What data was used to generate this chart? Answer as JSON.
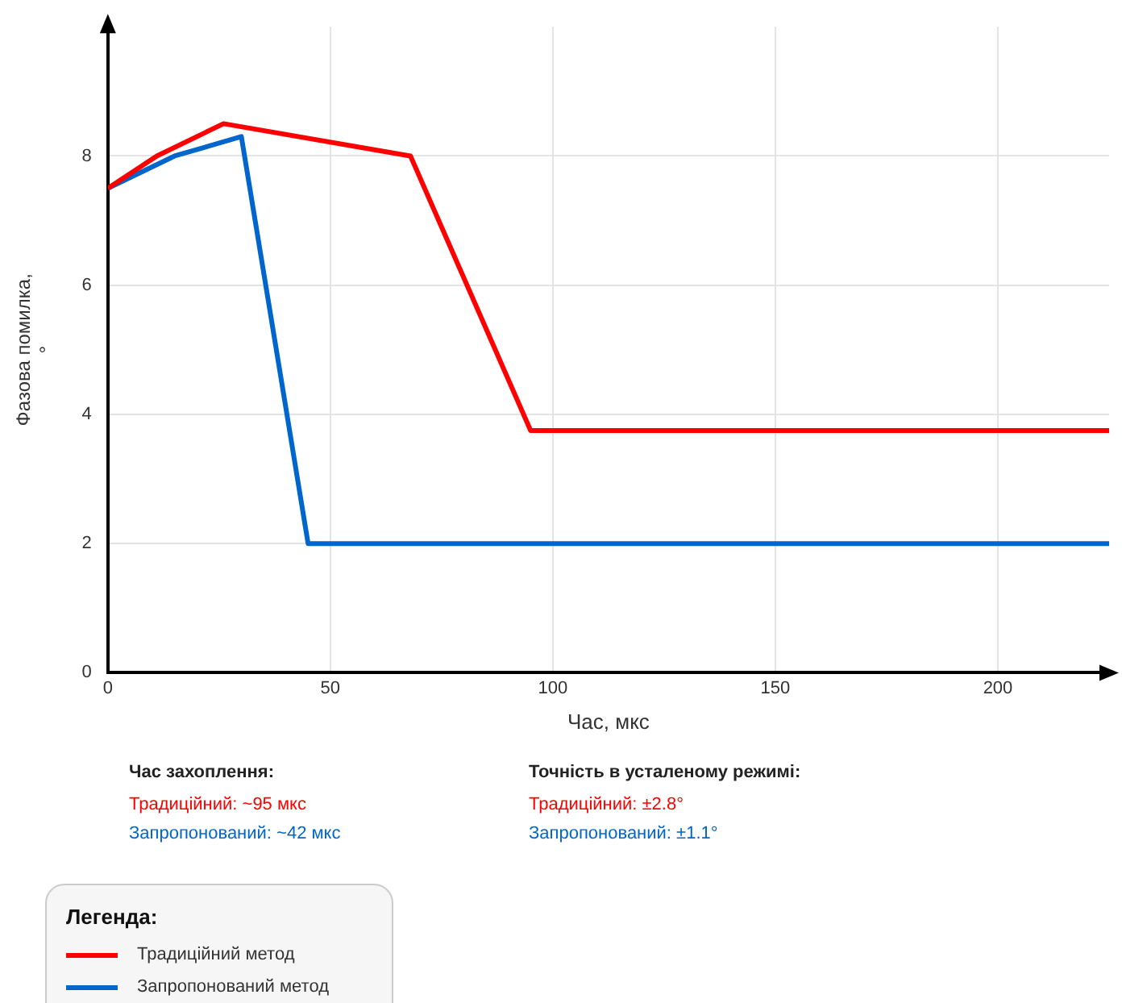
{
  "chart_data": {
    "type": "line",
    "xlabel": "Час, мкс",
    "ylabel": "Фазова помилка, °",
    "legend_title": "Легенда:",
    "xlim": [
      0,
      225
    ],
    "xticks": [
      0,
      50,
      100,
      150,
      200
    ],
    "ylim": [
      0,
      10
    ],
    "yticks": [
      0,
      2,
      4,
      6,
      8
    ],
    "grid": true,
    "legend": "bottom left",
    "marker": "none",
    "line_style": "solid",
    "series": [
      {
        "name": "Традиційний метод",
        "color": "#ff0000",
        "x": [
          0,
          11,
          26,
          68,
          95,
          225
        ],
        "values": [
          7.5,
          8.0,
          8.5,
          8.0,
          3.75,
          3.75
        ]
      },
      {
        "name": "Запропонований метод",
        "color": "#0066cc",
        "x": [
          0,
          15,
          30,
          45,
          225
        ],
        "values": [
          7.5,
          8.0,
          8.3,
          2.0,
          2.0
        ]
      }
    ],
    "annotations": [
      "Час захоплення:",
      "Традиційний: ~95 мкс",
      "Запропонований: ~42 мкс",
      "Точність в усталеному режимі:",
      "Традиційний: ±2.8°",
      "Запропонований: ±1.1°"
    ]
  }
}
